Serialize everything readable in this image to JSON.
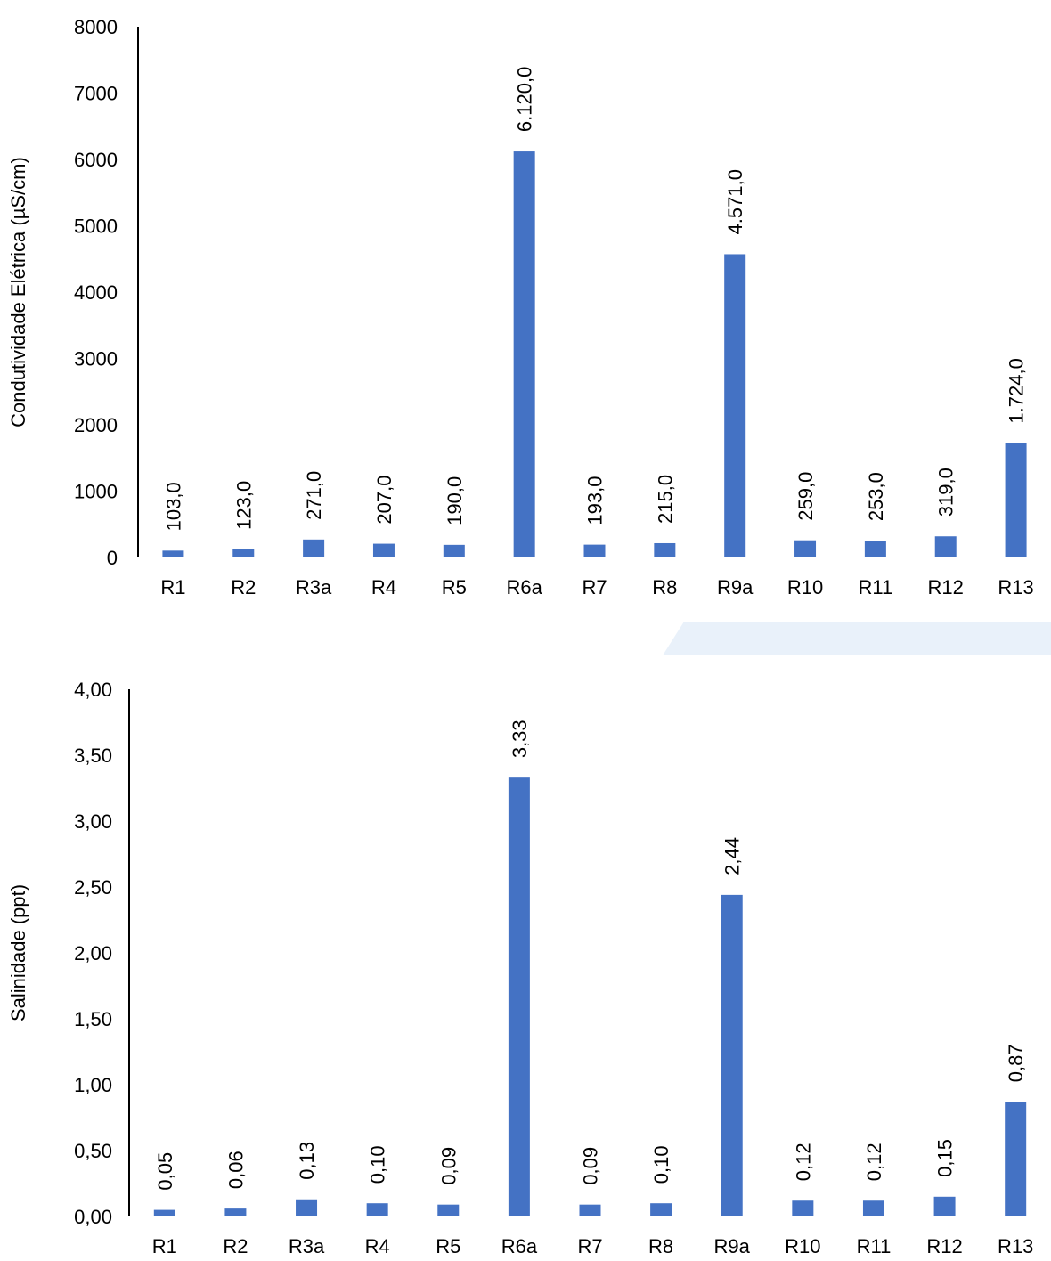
{
  "chart_data": [
    {
      "type": "bar",
      "title": "",
      "xlabel": "",
      "ylabel": "Condutividade Elétrica (µS/cm)",
      "ylim": [
        0,
        8000
      ],
      "yticks": [
        0,
        1000,
        2000,
        3000,
        4000,
        5000,
        6000,
        7000,
        8000
      ],
      "ytick_labels": [
        "0",
        "1000",
        "2000",
        "3000",
        "4000",
        "5000",
        "6000",
        "7000",
        "8000"
      ],
      "categories": [
        "R1",
        "R2",
        "R3a",
        "R4",
        "R5",
        "R6a",
        "R7",
        "R8",
        "R9a",
        "R10",
        "R11",
        "R12",
        "R13"
      ],
      "values": [
        103,
        123,
        271,
        207,
        190,
        6120,
        193,
        215,
        4571,
        259,
        253,
        319,
        1724
      ],
      "data_labels": [
        "103,0",
        "123,0",
        "271,0",
        "207,0",
        "190,0",
        "6.120,0",
        "193,0",
        "215,0",
        "4.571,0",
        "259,0",
        "253,0",
        "319,0",
        "1.724,0"
      ],
      "bar_color": "#4472C4",
      "grid": false,
      "legend": "none"
    },
    {
      "type": "bar",
      "title": "",
      "xlabel": "",
      "ylabel": "Salinidade (ppt)",
      "ylim": [
        0,
        4
      ],
      "yticks": [
        0,
        0.5,
        1,
        1.5,
        2,
        2.5,
        3,
        3.5,
        4
      ],
      "ytick_labels": [
        "0,00",
        "0,50",
        "1,00",
        "1,50",
        "2,00",
        "2,50",
        "3,00",
        "3,50",
        "4,00"
      ],
      "categories": [
        "R1",
        "R2",
        "R3a",
        "R4",
        "R5",
        "R6a",
        "R7",
        "R8",
        "R9a",
        "R10",
        "R11",
        "R12",
        "R13"
      ],
      "values": [
        0.05,
        0.06,
        0.13,
        0.1,
        0.09,
        3.33,
        0.09,
        0.1,
        2.44,
        0.12,
        0.12,
        0.15,
        0.87
      ],
      "data_labels": [
        "0,05",
        "0,06",
        "0,13",
        "0,10",
        "0,09",
        "3,33",
        "0,09",
        "0,10",
        "2,44",
        "0,12",
        "0,12",
        "0,15",
        "0,87"
      ],
      "bar_color": "#4472C4",
      "grid": false,
      "legend": "none"
    }
  ],
  "decoration": {
    "accent_color": "#E9F1FA"
  }
}
